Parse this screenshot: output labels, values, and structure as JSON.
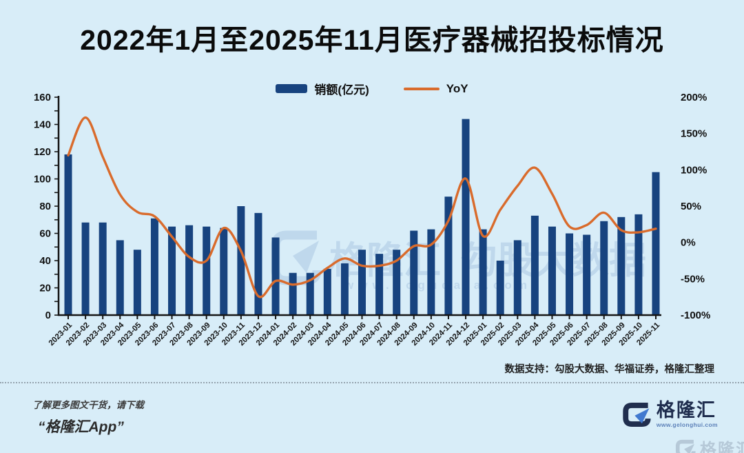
{
  "page": {
    "title": "2022年1月至2025年11月医疗器械招投标情况",
    "source_note": "数据支持：勾股大数据、华福证券，格隆汇整理",
    "footer": {
      "promo_line1": "了解更多图文干货，请下载",
      "promo_line2": "“格隆汇App”",
      "brand_name": "格隆汇",
      "brand_url": "www.gelonghui.com"
    },
    "watermark": {
      "brand": "格隆汇",
      "divider": "|",
      "product": "勾股大数据",
      "url": "www.gogudata.com"
    },
    "colors": {
      "background": "#d8edf8",
      "bar": "#17437f",
      "line": "#d96b2c",
      "axis": "#151515",
      "watermark": "#86abd3",
      "logo_navy": "#202e4e",
      "logo_blue": "#4179cf"
    }
  },
  "chart_data": {
    "type": "bar+line combo (dual axis)",
    "legend_position": "top-center",
    "grid": false,
    "legend": [
      {
        "label": "销额(亿元)",
        "type": "bar",
        "color": "#17437f"
      },
      {
        "label": "YoY",
        "type": "line",
        "color": "#d96b2c"
      }
    ],
    "categories": [
      "2023-01",
      "2023-02",
      "2023-03",
      "2023-04",
      "2023-05",
      "2023-06",
      "2023-07",
      "2023-08",
      "2023-09",
      "2023-10",
      "2023-11",
      "2023-12",
      "2024-01",
      "2024-02",
      "2024-03",
      "2024-04",
      "2024-05",
      "2024-06",
      "2024-07",
      "2024-08",
      "2024-09",
      "2024-10",
      "2024-11",
      "2024-12",
      "2025-01",
      "2025-02",
      "2025-03",
      "2025-04",
      "2025-05",
      "2025-06",
      "2025-07",
      "2025-08",
      "2025-09",
      "2025-10",
      "2025-11"
    ],
    "series": [
      {
        "name": "销额(亿元)",
        "type": "bar",
        "axis": "left",
        "unit": "亿元",
        "values": [
          118,
          68,
          68,
          55,
          48,
          71,
          65,
          66,
          65,
          64,
          80,
          75,
          57,
          31,
          31,
          34,
          38,
          48,
          45,
          48,
          62,
          63,
          87,
          144,
          63,
          40,
          55,
          73,
          65,
          60,
          59,
          69,
          72,
          74,
          105
        ]
      },
      {
        "name": "YoY",
        "type": "line",
        "axis": "right",
        "unit": "%",
        "smooth": true,
        "values": [
          120,
          172,
          118,
          66,
          42,
          36,
          8,
          -20,
          -25,
          20,
          -12,
          -74,
          -53,
          -58,
          -52,
          -35,
          -22,
          -32,
          -32,
          -25,
          -5,
          -3,
          30,
          88,
          9,
          45,
          78,
          103,
          67,
          22,
          24,
          41,
          17,
          14,
          19
        ]
      }
    ],
    "left_axis": {
      "min": 0,
      "max": 160,
      "tick_step": 20,
      "minor_tick_step": 10,
      "tick_labels": [
        "0",
        "20",
        "40",
        "60",
        "80",
        "100",
        "120",
        "140",
        "160"
      ]
    },
    "right_axis": {
      "min": -100,
      "max": 200,
      "tick_step": 50,
      "tick_labels": [
        "200%",
        "150%",
        "100%",
        "50%",
        "0%",
        "-50%",
        "-100%"
      ]
    }
  }
}
